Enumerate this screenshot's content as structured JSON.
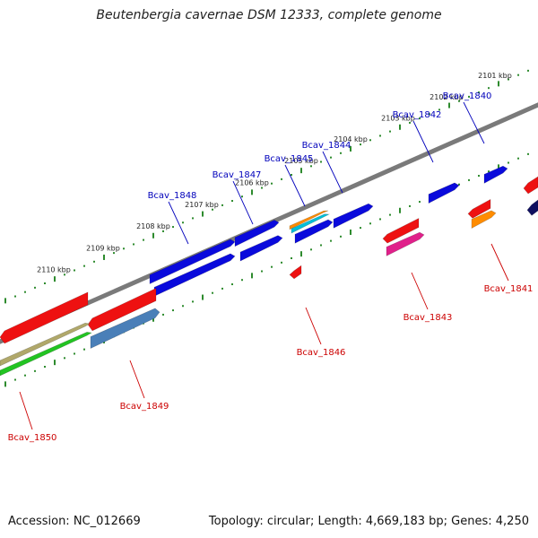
{
  "title": "Beutenbergia cavernae DSM 12333, complete genome",
  "footer": {
    "accession": "Accession: NC_012669",
    "topology": "Topology: circular; Length: 4,669,183 bp; Genes: 4,250"
  },
  "colors": {
    "backbone": "#7a7a7a",
    "track_dots": "#2e8b2e",
    "upper_label": "#0000bb",
    "lower_label": "#cc0000"
  },
  "ticks": [
    {
      "label": "2101 kbp",
      "kbp": 2101
    },
    {
      "label": "2102 kbp",
      "kbp": 2102
    },
    {
      "label": "2103 kbp",
      "kbp": 2103
    },
    {
      "label": "2104 kbp",
      "kbp": 2104
    },
    {
      "label": "2105 kbp",
      "kbp": 2105
    },
    {
      "label": "2106 kbp",
      "kbp": 2106
    },
    {
      "label": "2107 kbp",
      "kbp": 2107
    },
    {
      "label": "2108 kbp",
      "kbp": 2108
    },
    {
      "label": "2109 kbp",
      "kbp": 2109
    },
    {
      "label": "2110 kbp",
      "kbp": 2110
    }
  ],
  "gene_labels": [
    {
      "name": "Bcav_1840",
      "strand": "upper"
    },
    {
      "name": "Bcav_1842",
      "strand": "upper"
    },
    {
      "name": "Bcav_1844",
      "strand": "upper"
    },
    {
      "name": "Bcav_1845",
      "strand": "upper"
    },
    {
      "name": "Bcav_1847",
      "strand": "upper"
    },
    {
      "name": "Bcav_1848",
      "strand": "upper"
    },
    {
      "name": "Bcav_1841",
      "strand": "lower"
    },
    {
      "name": "Bcav_1843",
      "strand": "lower"
    },
    {
      "name": "Bcav_1846",
      "strand": "lower"
    },
    {
      "name": "Bcav_1849",
      "strand": "lower"
    },
    {
      "name": "Bcav_1850",
      "strand": "lower"
    }
  ]
}
